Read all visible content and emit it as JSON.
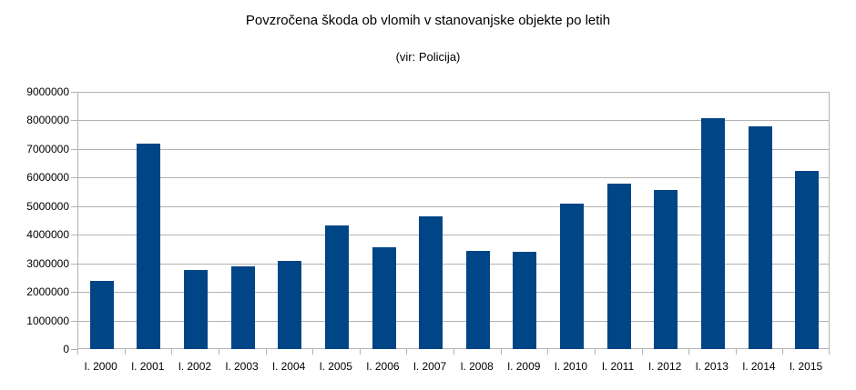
{
  "chart_data": {
    "type": "bar",
    "title": "Povzročena škoda ob vlomih v stanovanjske objekte po letih",
    "subtitle": "(vir: Policija)",
    "xlabel": "",
    "ylabel": "",
    "ylim": [
      0,
      9000000
    ],
    "yticks": [
      "0",
      "1000000",
      "2000000",
      "3000000",
      "4000000",
      "5000000",
      "6000000",
      "7000000",
      "8000000",
      "9000000"
    ],
    "grid": true,
    "legend": "none",
    "bar_color": "#004586",
    "categories": [
      "l. 2000",
      "l. 2001",
      "l. 2002",
      "l. 2003",
      "l. 2004",
      "l. 2005",
      "l. 2006",
      "l. 2007",
      "l. 2008",
      "l. 2009",
      "l. 2010",
      "l. 2011",
      "l. 2012",
      "l. 2013",
      "l. 2014",
      "l. 2015"
    ],
    "values": [
      2400000,
      7200000,
      2770000,
      2880000,
      3090000,
      4330000,
      3550000,
      4650000,
      3440000,
      3410000,
      5100000,
      5790000,
      5550000,
      8070000,
      7800000,
      6240000
    ]
  }
}
